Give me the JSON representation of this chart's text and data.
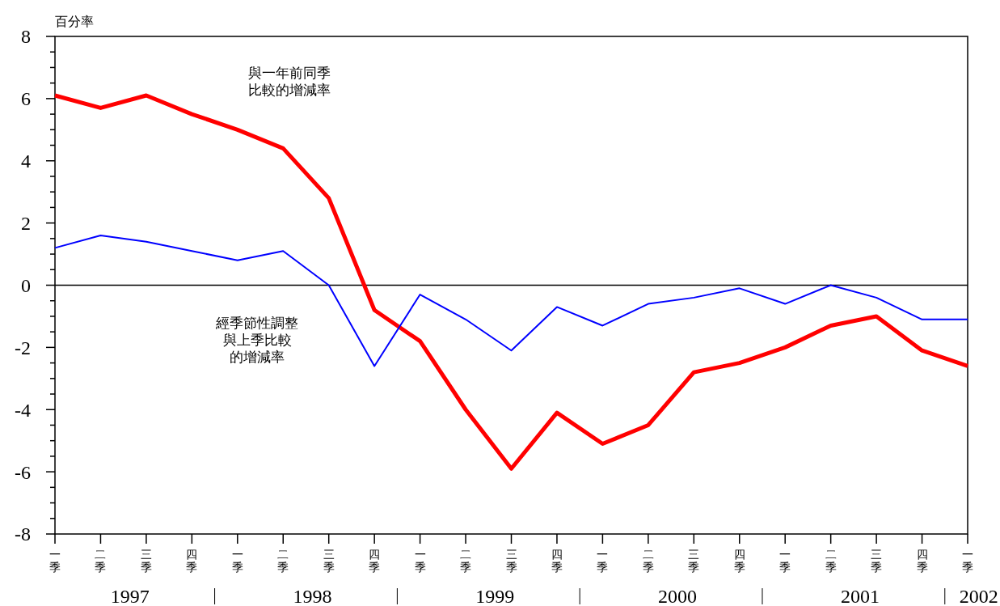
{
  "chart_data": {
    "type": "line",
    "ylabel": "百分率",
    "categories": [
      "一季",
      "二季",
      "三季",
      "四季",
      "一季",
      "二季",
      "三季",
      "四季",
      "一季",
      "二季",
      "三季",
      "四季",
      "一季",
      "二季",
      "三季",
      "四季",
      "一季",
      "二季",
      "三季",
      "四季",
      "一季"
    ],
    "series": [
      {
        "color": "#ff0000",
        "values": [
          6.1,
          5.7,
          6.1,
          5.5,
          5.0,
          4.4,
          2.8,
          -0.8,
          -1.8,
          -4.0,
          -5.9,
          -4.1,
          -5.1,
          -4.5,
          -2.8,
          -2.5,
          -2.0,
          -1.3,
          -1.0,
          -2.1,
          -2.6
        ]
      },
      {
        "color": "#0000ff",
        "values": [
          1.2,
          1.6,
          1.4,
          1.1,
          0.8,
          1.1,
          0.0,
          -2.6,
          -0.3,
          -1.1,
          -2.1,
          -0.7,
          -1.3,
          -0.6,
          -0.4,
          -0.1,
          -0.6,
          0.0,
          -0.4,
          -1.1,
          -1.1
        ]
      }
    ],
    "ylim": [
      -8,
      8
    ],
    "yticks": [
      -8,
      {
        "value": -7.5,
        "label": null
      },
      {
        "value": -7,
        "label": null
      },
      {
        "value": -6.5,
        "label": null
      },
      -6,
      {
        "value": -5.5,
        "label": null
      },
      {
        "value": -5,
        "label": null
      },
      {
        "value": -4.5,
        "label": null
      },
      -4,
      {
        "value": -3.5,
        "label": null
      },
      {
        "value": -3,
        "label": null
      },
      {
        "value": -2.5,
        "label": null
      },
      -2,
      {
        "value": -1.5,
        "label": null
      },
      {
        "value": -1,
        "label": null
      },
      {
        "value": -0.5,
        "label": null
      },
      0,
      {
        "value": 0.5,
        "label": null
      },
      {
        "value": 1,
        "label": null
      },
      {
        "value": 1.5,
        "label": null
      },
      2,
      {
        "value": 2.5,
        "label": null
      },
      {
        "value": 3,
        "label": null
      },
      {
        "value": 3.5,
        "label": null
      },
      4,
      {
        "value": 4.5,
        "label": null
      },
      {
        "value": 5,
        "label": null
      },
      {
        "value": 5.5,
        "label": null
      },
      6,
      {
        "value": 6.5,
        "label": null
      },
      {
        "value": 7,
        "label": null
      },
      {
        "value": 7.5,
        "label": null
      },
      8
    ],
    "ref_lines": [
      {
        "axis": "y",
        "value": 0,
        "color": "#000000"
      }
    ],
    "annotations": [
      "與一年前同季比較的增減率",
      "經季節性調整與上季比較的增減率",
      "1997",
      "1998",
      "1999",
      "2000",
      "2001",
      "2002"
    ],
    "grid": false,
    "line_style": "solid",
    "marker": "none"
  }
}
